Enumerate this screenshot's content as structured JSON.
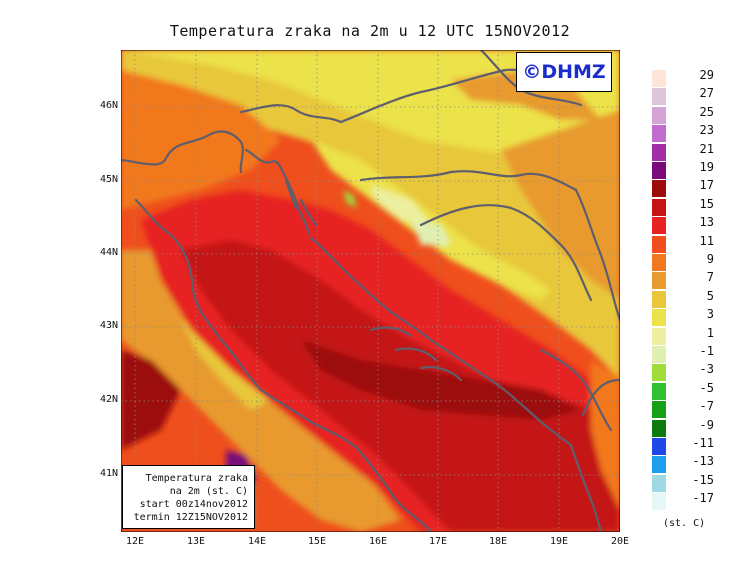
{
  "title": "Temperatura zraka na 2m u 12 UTC 15NOV2012",
  "logo": "©DHMZ",
  "info_box": {
    "line1": "Temperatura zraka",
    "line2": "na 2m (st. C)",
    "line3": "start 00z14nov2012",
    "line4": "termin 12Z15NOV2012"
  },
  "lat_labels": [
    "46N",
    "45N",
    "44N",
    "43N",
    "42N",
    "41N"
  ],
  "lon_labels": [
    "12E",
    "13E",
    "14E",
    "15E",
    "16E",
    "17E",
    "18E",
    "19E",
    "20E"
  ],
  "legend": {
    "unit": "(st. C)",
    "items": [
      {
        "label": "29",
        "color": "#fde6d8"
      },
      {
        "label": "27",
        "color": "#dcc6d8"
      },
      {
        "label": "25",
        "color": "#d6a3d6"
      },
      {
        "label": "23",
        "color": "#c26ccd"
      },
      {
        "label": "21",
        "color": "#a32ca8"
      },
      {
        "label": "19",
        "color": "#7a0a7a"
      },
      {
        "label": "17",
        "color": "#9c0c0c"
      },
      {
        "label": "15",
        "color": "#c41414"
      },
      {
        "label": "13",
        "color": "#e62222"
      },
      {
        "label": "11",
        "color": "#ef4f1c"
      },
      {
        "label": "9",
        "color": "#f2781f"
      },
      {
        "label": "7",
        "color": "#e89a2e"
      },
      {
        "label": "5",
        "color": "#e8c73a"
      },
      {
        "label": "3",
        "color": "#ece24a"
      },
      {
        "label": "1",
        "color": "#edf0a0"
      },
      {
        "label": "-1",
        "color": "#dff0b0"
      },
      {
        "label": "-3",
        "color": "#9fdc3c"
      },
      {
        "label": "-5",
        "color": "#2fc12f"
      },
      {
        "label": "-7",
        "color": "#17a017"
      },
      {
        "label": "-9",
        "color": "#0c7a0c"
      },
      {
        "label": "-11",
        "color": "#1f48e6"
      },
      {
        "label": "-13",
        "color": "#1f9ef0"
      },
      {
        "label": "-15",
        "color": "#9fd9e3"
      },
      {
        "label": "-17",
        "color": "#e6f7f8"
      }
    ]
  }
}
